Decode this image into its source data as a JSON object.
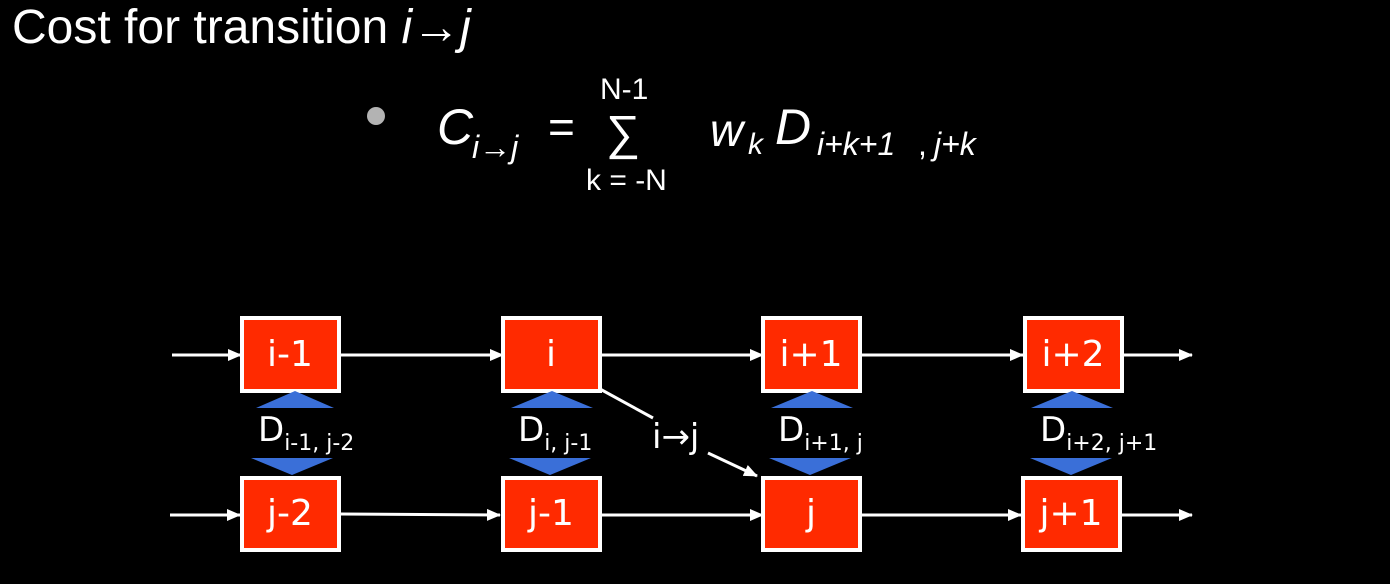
{
  "title": {
    "prefix": "Cost for transition ",
    "i": "i",
    "arrow": "→",
    "j": "j"
  },
  "formula": {
    "lhs_main": "C",
    "lhs_sub": "i→j",
    "equals": "=",
    "sum_top": "N-1",
    "sum_symbol": "∑",
    "sum_bottom": "k = -N",
    "w": "w",
    "w_sub": "k",
    "D": "D",
    "D_sub_a": "i+k+1",
    "D_sub_b": ",",
    "D_sub_c": "j+k"
  },
  "top_row": [
    "i-1",
    "i",
    "i+1",
    "i+2"
  ],
  "bottom_row": [
    "j-2",
    "j-1",
    "j",
    "j+1"
  ],
  "distances": [
    {
      "main": "D",
      "sub": "i-1, j-2"
    },
    {
      "main": "D",
      "sub": "i, j-1"
    },
    {
      "main": "D",
      "sub": "i+1, j"
    },
    {
      "main": "D",
      "sub": "i+2, j+1"
    }
  ],
  "transition_label": "i→j",
  "colors": {
    "background": "#000000",
    "box_fill": "#ff2a00",
    "box_stroke": "#ffffff",
    "triangle": "#3a6fd8",
    "text": "#ffffff"
  }
}
